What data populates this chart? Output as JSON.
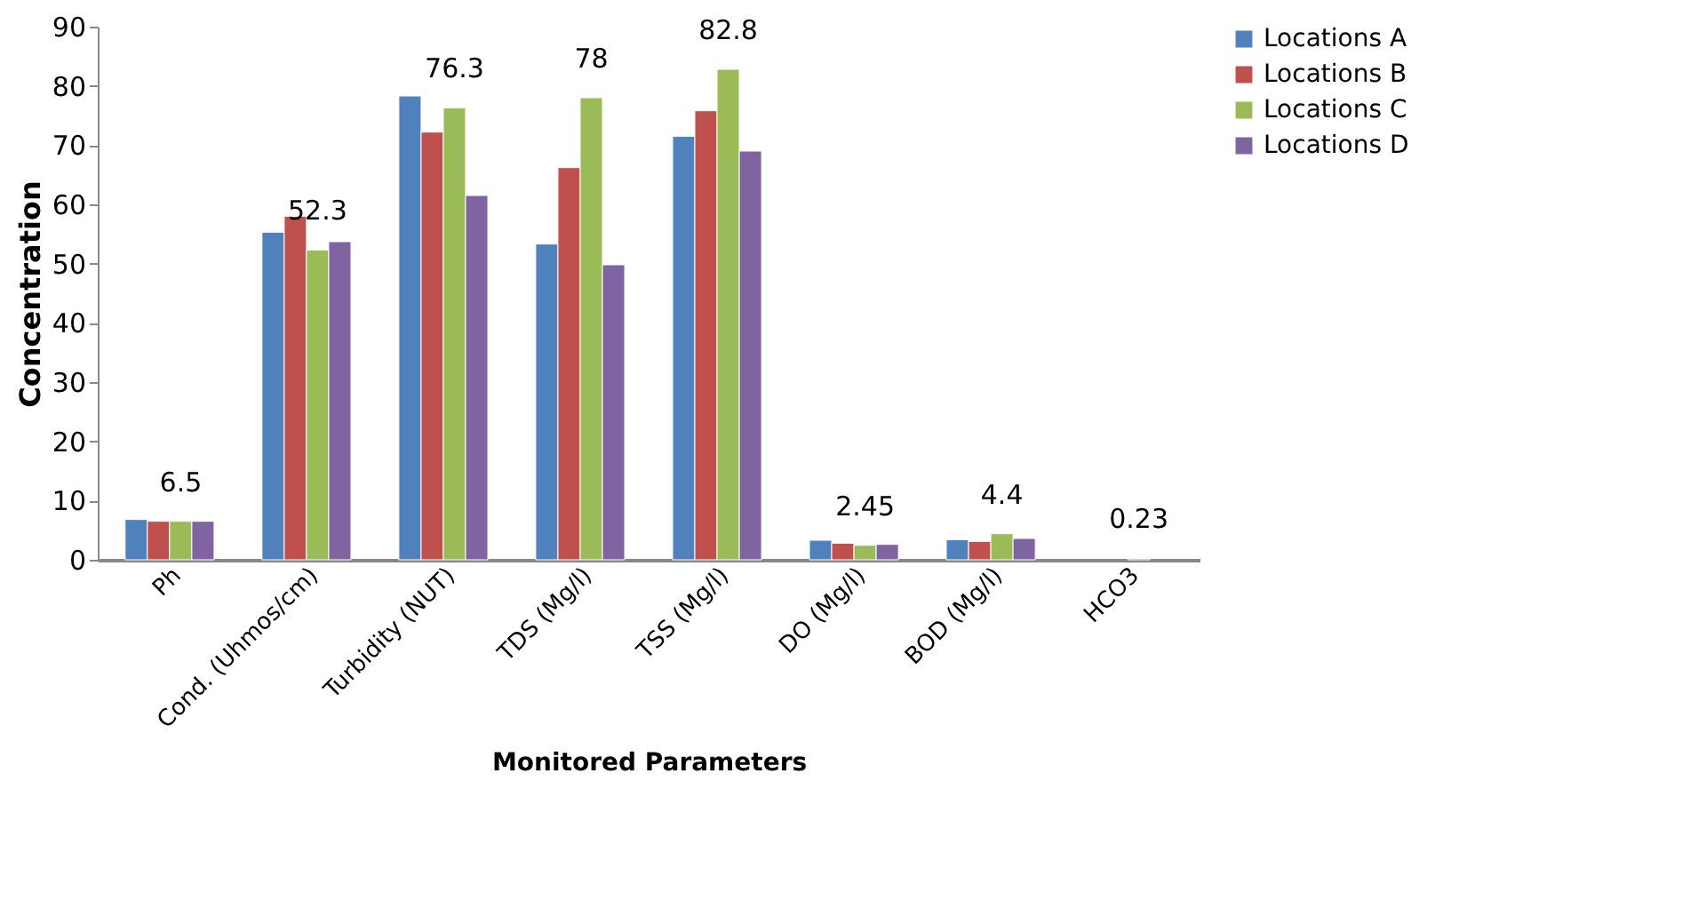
{
  "chart_data": {
    "type": "bar",
    "xlabel": "Monitored Parameters",
    "ylabel": "Concentration",
    "categories": [
      "Ph",
      "Cond. (Uhmos/cm)",
      "Turbidity (NUT)",
      "TDS (Mg/l)",
      "TSS (Mg/l)",
      "DO (Mg/l)",
      "BOD (Mg/l)",
      "HCO3"
    ],
    "series": [
      {
        "name": "Locations A",
        "color": "#4f81bd",
        "values": [
          6.8,
          55.3,
          78.3,
          53.3,
          71.5,
          3.3,
          3.4,
          null
        ]
      },
      {
        "name": "Locations B",
        "color": "#c0504d",
        "values": [
          6.5,
          58,
          72.2,
          66.2,
          75.8,
          2.8,
          3.1,
          null
        ]
      },
      {
        "name": "Locations C",
        "color": "#9bbb59",
        "values": [
          6.5,
          52.3,
          76.3,
          78,
          82.8,
          2.45,
          4.4,
          0.23
        ],
        "value_labels": [
          "6.5",
          "52.3",
          "76.3",
          "78",
          "82.8",
          "2.45",
          "4.4",
          "0.23"
        ]
      },
      {
        "name": "Locations D",
        "color": "#8064a2",
        "values": [
          6.5,
          53.7,
          61.5,
          49.8,
          69,
          2.6,
          3.6,
          null
        ]
      }
    ],
    "ylim": [
      0,
      90
    ],
    "yticks": [
      0,
      10,
      20,
      30,
      40,
      50,
      60,
      70,
      80,
      90
    ],
    "grid": false,
    "legend": "right"
  }
}
